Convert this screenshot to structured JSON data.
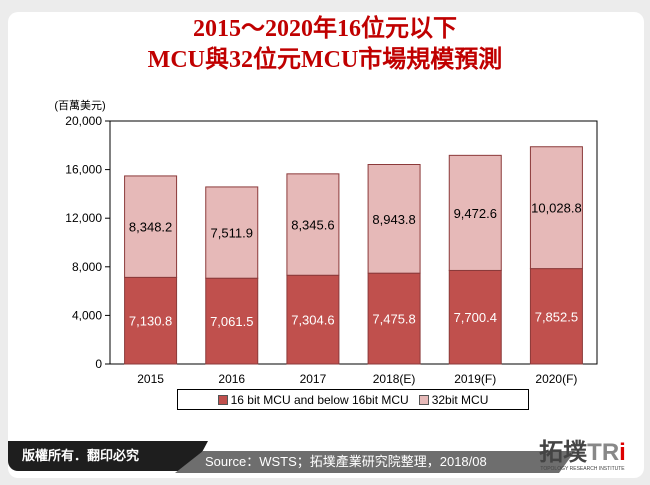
{
  "title_line1": "2015～2020年16位元以下",
  "title_line2": "MCU與32位元MCU市場規模預測",
  "chart_data": {
    "type": "bar",
    "stacked": true,
    "ylabel": "(百萬美元)",
    "ylim": [
      0,
      20000
    ],
    "yticks": [
      "0",
      "4,000",
      "8,000",
      "12,000",
      "16,000",
      "20,000"
    ],
    "categories": [
      "2015",
      "2016",
      "2017",
      "2018(E)",
      "2019(F)",
      "2020(F)"
    ],
    "series": [
      {
        "name": "16 bit MCU and below 16bit MCU",
        "color": "#c0504d",
        "values": [
          7130.8,
          7061.5,
          7304.6,
          7475.8,
          7700.4,
          7852.5
        ],
        "labels": [
          "7,130.8",
          "7,061.5",
          "7,304.6",
          "7,475.8",
          "7,700.4",
          "7,852.5"
        ]
      },
      {
        "name": "32bit MCU",
        "color": "#e6b9b8",
        "values": [
          8348.2,
          7511.9,
          8345.6,
          8943.8,
          9472.6,
          10028.8
        ],
        "labels": [
          "8,348.2",
          "7,511.9",
          "8,345.6",
          "8,943.8",
          "9,472.6",
          "10,028.8"
        ]
      }
    ],
    "legend": "bottom"
  },
  "footer": {
    "copyright": "版權所有．翻印必究",
    "source": "Source：WSTS；拓墣產業研究院整理，2018/08"
  },
  "logo": {
    "text": "拓墣TRi",
    "subtitle": "TOPOLOGY RESEARCH INSTITUTE"
  }
}
